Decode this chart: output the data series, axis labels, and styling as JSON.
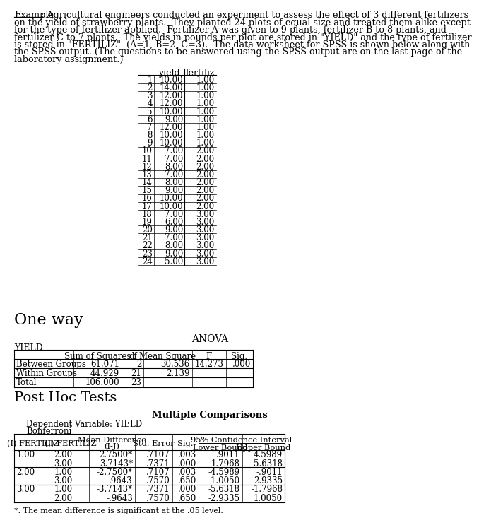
{
  "para_lines": [
    ": Agricultural engineers conducted an experiment to assess the effect of 3 different fertilizers",
    "on the yield of strawberry plants.  They planted 24 plots of equal size and treated them alike except",
    "for the type of fertilizer applied.  Fertilizer A was given to 9 plants, fertilizer B to 8 plants, and",
    "fertilizer C to 7 plants.  The yields in pounds per plot are stored in \"YIELD\" and the type of fertilizer",
    "is stored in \"FERTILIZ\"  (A=1, B=2, C=3).  The data worksheet for SPSS is shown below along with",
    "the SPSS output. (The questions to be answered using the SPSS output are on the last page of the",
    "laboratory assignment.)"
  ],
  "example_label": "Example",
  "data_rows": [
    [
      1,
      "10.00",
      "1.00"
    ],
    [
      2,
      "14.00",
      "1.00"
    ],
    [
      3,
      "12.00",
      "1.00"
    ],
    [
      4,
      "12.00",
      "1.00"
    ],
    [
      5,
      "10.00",
      "1.00"
    ],
    [
      6,
      "9.00",
      "1.00"
    ],
    [
      7,
      "12.00",
      "1.00"
    ],
    [
      8,
      "10.00",
      "1.00"
    ],
    [
      9,
      "10.00",
      "1.00"
    ],
    [
      10,
      "7.00",
      "2.00"
    ],
    [
      11,
      "7.00",
      "2.00"
    ],
    [
      12,
      "8.00",
      "2.00"
    ],
    [
      13,
      "7.00",
      "2.00"
    ],
    [
      14,
      "8.00",
      "2.00"
    ],
    [
      15,
      "9.00",
      "2.00"
    ],
    [
      16,
      "10.00",
      "2.00"
    ],
    [
      17,
      "10.00",
      "2.00"
    ],
    [
      18,
      "7.00",
      "3.00"
    ],
    [
      19,
      "6.00",
      "3.00"
    ],
    [
      20,
      "9.00",
      "3.00"
    ],
    [
      21,
      "7.00",
      "3.00"
    ],
    [
      22,
      "8.00",
      "3.00"
    ],
    [
      23,
      "9.00",
      "3.00"
    ],
    [
      24,
      "5.00",
      "3.00"
    ]
  ],
  "oneway_label": "One way",
  "anova_title": "ANOVA",
  "yield_label": "YIELD",
  "anova_headers": [
    "",
    "Sum of Squares",
    "df",
    "Mean Square",
    "F",
    "Sig."
  ],
  "anova_rows": [
    [
      "Between Groups",
      "61.071",
      "2",
      "30.536",
      "14.273",
      ".000"
    ],
    [
      "Within Groups",
      "44.929",
      "21",
      "2.139",
      "",
      ""
    ],
    [
      "Total",
      "106.000",
      "23",
      "",
      "",
      ""
    ]
  ],
  "post_hoc_label": "Post Hoc Tests",
  "multiple_comp_title": "Multiple Comparisons",
  "dep_var_label": "Dependent Variable: YIELD",
  "method_label": "Bonferroni",
  "mc_rows": [
    [
      "1.00",
      "2.00",
      "2.7500*",
      ".7107",
      ".003",
      ".9011",
      "4.5989"
    ],
    [
      "",
      "3.00",
      "3.7143*",
      ".7371",
      ".000",
      "1.7968",
      "5.6318"
    ],
    [
      "2.00",
      "1.00",
      "-2.7500*",
      ".7107",
      ".003",
      "-4.5989",
      "-.9011"
    ],
    [
      "",
      "3.00",
      ".9643",
      ".7570",
      ".650",
      "-1.0050",
      "2.9335"
    ],
    [
      "3.00",
      "1.00",
      "-3.7143*",
      ".7371",
      ".000",
      "-5.6318",
      "-1.7968"
    ],
    [
      "",
      "2.00",
      "-.9643",
      ".7570",
      ".650",
      "-2.9335",
      "1.0050"
    ]
  ],
  "footnote": "*. The mean difference is significant at the .05 level.",
  "bg_color": "#ffffff",
  "text_color": "#000000"
}
